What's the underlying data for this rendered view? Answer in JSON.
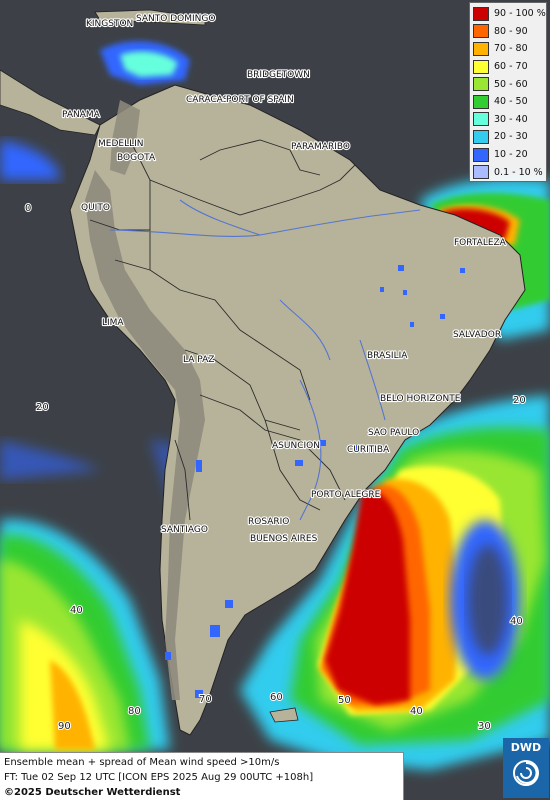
{
  "legend": {
    "items": [
      {
        "label": "90 - 100 %",
        "color": "#cc0000"
      },
      {
        "label": "80 - 90",
        "color": "#ff6600"
      },
      {
        "label": "70 - 80",
        "color": "#ffb300"
      },
      {
        "label": "60 - 70",
        "color": "#ffff33"
      },
      {
        "label": "50 - 60",
        "color": "#99e633"
      },
      {
        "label": "40 - 50",
        "color": "#33cc33"
      },
      {
        "label": "30 - 40",
        "color": "#66ffdd"
      },
      {
        "label": "20 - 30",
        "color": "#33ccee"
      },
      {
        "label": "10 - 20",
        "color": "#3366ff"
      },
      {
        "label": "0.1 - 10 %",
        "color": "#aabbff"
      }
    ]
  },
  "cities": {
    "kingston": "KINGSTON",
    "santo_domingo": "SANTO DOMINGO",
    "bridgetown": "BRIDGETOWN",
    "caracas": "CARACAS",
    "port_of_spain": "PORT OF SPAIN",
    "panama": "PANAMA",
    "medellin": "MEDELLIN",
    "bogota": "BOGOTA",
    "paramaribo": "PARAMARIBO",
    "quito": "QUITO",
    "fortaleza": "FORTALEZA",
    "lima": "LIMA",
    "salvador": "SALVADOR",
    "brasilia": "BRASILIA",
    "la_paz": "LA PAZ",
    "belo_horizonte": "BELO HORIZONTE",
    "sao_paulo": "SAO PAULO",
    "curitiba": "CURITIBA",
    "asuncion": "ASUNCION",
    "porto_alegre": "PORTO ALEGRE",
    "rosario": "ROSARIO",
    "santiago": "SANTIAGO",
    "buenos_aires": "BUENOS AIRES"
  },
  "grid_labels": {
    "lat_0": "0",
    "lat_20": "20",
    "lat_40": "40",
    "lon_90": "90",
    "lon_80": "80",
    "lon_70": "70",
    "lon_60": "60",
    "lon_50": "50",
    "lon_40": "40",
    "lon_30": "30",
    "lat_20_right": "20",
    "lat_40_right": "40"
  },
  "caption": {
    "line1": "Ensemble mean + spread of Mean wind speed >10m/s",
    "line2": "FT: Tue 02 Sep 12 UTC [ICON EPS 2025 Aug 29 00UTC +108h]",
    "line3": "©2025 Deutscher Wetterdienst"
  },
  "logo": {
    "text": "DWD"
  },
  "colors": {
    "ocean": "#3d4147",
    "land": "#b7b39a",
    "highland": "#8f8b7d",
    "border": "#2b2b2b",
    "river": "#4a6fd6"
  }
}
